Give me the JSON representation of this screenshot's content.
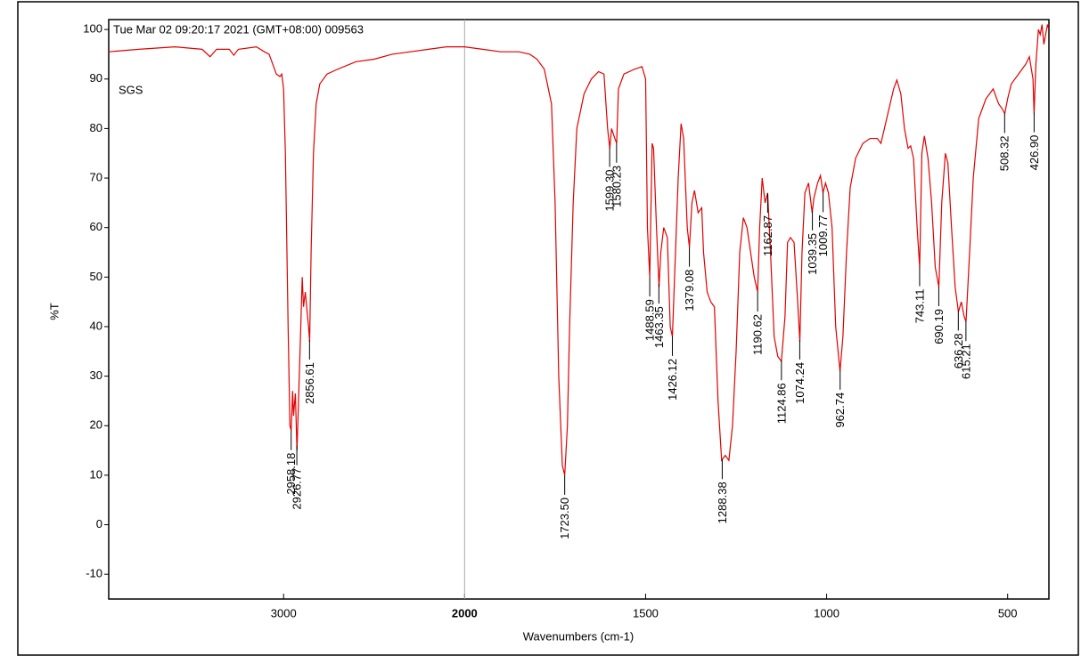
{
  "chart_data": {
    "type": "line",
    "header": "Tue Mar 02 09:20:17 2021 (GMT+08:00) 009563",
    "sample_label": "SGS",
    "ylabel": "%T",
    "xlabel": "Wavenumbers (cm-1)",
    "color": "#e00000",
    "xlim": [
      3966,
      386
    ],
    "x_break": 2000,
    "xticks": [
      3000,
      2000,
      1500,
      1000,
      500
    ],
    "ylim": [
      -15,
      102
    ],
    "yticks": [
      -10,
      0,
      10,
      20,
      30,
      40,
      50,
      60,
      70,
      80,
      90,
      100
    ],
    "x": [
      3966,
      3800,
      3600,
      3450,
      3406,
      3370,
      3300,
      3275,
      3250,
      3150,
      3106,
      3080,
      3040,
      3020,
      3010,
      3000,
      2990,
      2975,
      2965,
      2958,
      2950,
      2945,
      2935,
      2926,
      2915,
      2905,
      2897,
      2890,
      2880,
      2870,
      2862,
      2856,
      2848,
      2835,
      2820,
      2800,
      2760,
      2700,
      2600,
      2500,
      2400,
      2300,
      2200,
      2100,
      2000,
      1950,
      1900,
      1850,
      1820,
      1800,
      1780,
      1760,
      1750,
      1740,
      1730,
      1723.5,
      1716,
      1710,
      1700,
      1690,
      1670,
      1650,
      1630,
      1615,
      1605,
      1599,
      1594,
      1585,
      1580,
      1575,
      1560,
      1530,
      1510,
      1500,
      1495,
      1488.6,
      1482,
      1478,
      1470,
      1463,
      1458,
      1450,
      1440,
      1432,
      1426,
      1420,
      1410,
      1402,
      1395,
      1385,
      1379,
      1372,
      1365,
      1355,
      1345,
      1340,
      1330,
      1320,
      1310,
      1300,
      1290,
      1280,
      1270,
      1260,
      1250,
      1240,
      1230,
      1220,
      1210,
      1200,
      1190.6,
      1185,
      1178,
      1170,
      1162.9,
      1155,
      1145,
      1135,
      1125,
      1115,
      1108,
      1100,
      1090,
      1080,
      1074,
      1068,
      1060,
      1050,
      1040,
      1035,
      1025,
      1017,
      1010,
      1003,
      995,
      985,
      975,
      963,
      955,
      945,
      935,
      920,
      900,
      880,
      860,
      850,
      815,
      806,
      795,
      785,
      775,
      768,
      760,
      750,
      743,
      737,
      730,
      720,
      710,
      700,
      690,
      682,
      672,
      665,
      655,
      645,
      636,
      628,
      620,
      615,
      605,
      595,
      580,
      560,
      540,
      525,
      515,
      508,
      500,
      490,
      470,
      450,
      440,
      430,
      427,
      422,
      415,
      410,
      405,
      400,
      390,
      386
    ],
    "values": [
      95.5,
      96,
      96.5,
      96,
      94.5,
      96,
      96,
      94.8,
      96,
      96.5,
      95.5,
      95,
      91,
      90.5,
      91,
      88,
      75,
      40,
      20,
      19,
      27,
      22,
      26.5,
      15,
      28,
      40,
      50,
      44,
      47,
      43,
      40,
      37,
      55,
      75,
      85,
      89,
      91,
      92,
      93.5,
      94,
      95,
      95.5,
      96,
      96.5,
      96.5,
      96,
      95.5,
      95.5,
      95,
      94,
      92,
      85,
      65,
      30,
      12,
      10,
      20,
      40,
      65,
      80,
      87,
      90,
      91.5,
      91,
      80,
      76,
      80,
      78,
      77,
      88,
      91,
      92,
      92.5,
      90,
      60,
      50,
      77,
      76,
      60,
      48,
      55,
      60,
      58,
      40,
      38,
      50,
      70,
      81,
      78,
      60,
      56,
      65,
      67.5,
      63,
      64,
      55,
      47,
      45,
      44,
      25,
      13,
      14,
      13,
      20,
      35,
      55,
      62,
      60,
      55,
      50,
      47,
      60,
      70,
      65,
      67,
      55,
      38,
      34,
      33,
      42,
      57,
      58,
      57,
      45,
      37,
      55,
      67,
      69,
      63,
      66,
      69,
      70.5,
      67,
      69,
      67,
      60,
      40,
      31,
      38,
      55,
      68,
      74,
      77,
      78,
      78,
      77,
      88,
      89.8,
      87,
      80,
      76,
      76.5,
      74,
      60,
      52,
      75,
      78.5,
      74,
      65,
      52,
      48,
      65,
      75,
      73,
      60,
      48,
      43,
      45,
      42,
      41,
      55,
      70,
      82,
      86,
      88,
      85,
      84,
      83,
      86,
      89,
      91,
      93,
      94.5,
      90,
      83,
      93,
      100,
      99,
      101,
      97,
      101,
      100
    ],
    "peaks": [
      {
        "value": 2958.18,
        "label": "2958.18"
      },
      {
        "value": 2926.77,
        "label": "2926.77"
      },
      {
        "value": 2856.61,
        "label": "2856.61"
      },
      {
        "value": 1723.5,
        "label": "1723.50"
      },
      {
        "value": 1599.3,
        "label": "1599.30"
      },
      {
        "value": 1580.23,
        "label": "1580.23"
      },
      {
        "value": 1488.59,
        "label": "1488.59"
      },
      {
        "value": 1463.35,
        "label": "1463.35"
      },
      {
        "value": 1426.12,
        "label": "1426.12"
      },
      {
        "value": 1379.08,
        "label": "1379.08"
      },
      {
        "value": 1288.38,
        "label": "1288.38"
      },
      {
        "value": 1190.62,
        "label": "1190.62"
      },
      {
        "value": 1162.87,
        "label": "1162.87"
      },
      {
        "value": 1124.86,
        "label": "1124.86"
      },
      {
        "value": 1074.24,
        "label": "1074.24"
      },
      {
        "value": 1039.35,
        "label": "1039.35"
      },
      {
        "value": 1009.77,
        "label": "1009.77"
      },
      {
        "value": 962.74,
        "label": "962.74"
      },
      {
        "value": 743.11,
        "label": "743.11"
      },
      {
        "value": 690.19,
        "label": "690.19"
      },
      {
        "value": 636.28,
        "label": "636.28"
      },
      {
        "value": 615.21,
        "label": "615.21"
      },
      {
        "value": 508.32,
        "label": "508.32"
      },
      {
        "value": 426.9,
        "label": "426.90"
      }
    ]
  }
}
